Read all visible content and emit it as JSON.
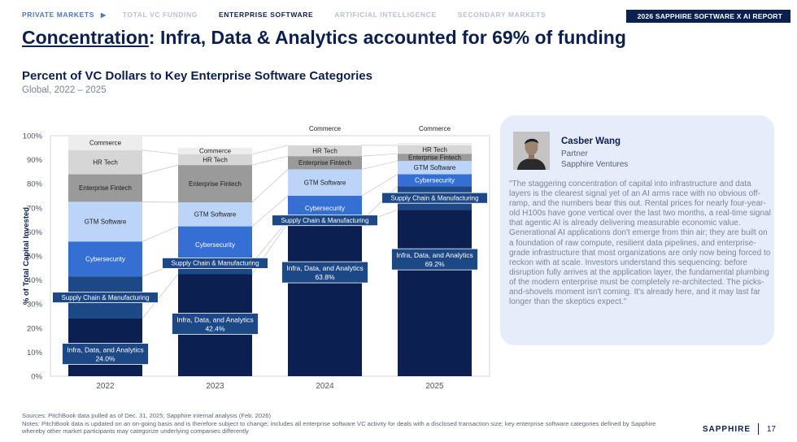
{
  "nav": {
    "items": [
      {
        "label": "PRIVATE MARKETS",
        "state": "parent"
      },
      {
        "label": "TOTAL VC FUNDING",
        "state": "inactive"
      },
      {
        "label": "ENTERPRISE SOFTWARE",
        "state": "active"
      },
      {
        "label": "ARTIFICIAL INTELLIGENCE",
        "state": "inactive"
      },
      {
        "label": "SECONDARY MARKETS",
        "state": "inactive"
      }
    ],
    "arrow": "▶"
  },
  "report_badge": "2026 SAPPHIRE SOFTWARE X AI REPORT",
  "headline": {
    "emph": "Concentration",
    "rest": ": Infra, Data & Analytics accounted for 69% of funding"
  },
  "chart_title": "Percent of VC Dollars to Key Enterprise Software Categories",
  "chart_subtitle": "Global, 2022 – 2025",
  "chart_data": {
    "type": "bar",
    "stacked": true,
    "x": [
      "2022",
      "2023",
      "2024",
      "2025"
    ],
    "ylabel": "% of Total Capital Invested",
    "ylim": [
      0,
      100
    ],
    "yticks": [
      "0%",
      "10%",
      "20%",
      "30%",
      "40%",
      "50%",
      "60%",
      "70%",
      "80%",
      "90%",
      "100%"
    ],
    "series": [
      {
        "name": "Infra, Data, and Analytics",
        "color": "#0b2050",
        "values": [
          24.0,
          42.4,
          63.8,
          69.2
        ],
        "labels": [
          "24.0%",
          "42.4%",
          "63.8%",
          "69.2%"
        ]
      },
      {
        "name": "Supply Chain & Manufacturing",
        "color": "#1d4886",
        "values": [
          17.5,
          4.6,
          1.0,
          9.8
        ]
      },
      {
        "name": "Cybersecurity",
        "color": "#356fd4",
        "values": [
          14.5,
          15.3,
          10.2,
          5.0
        ]
      },
      {
        "name": "GTM Software",
        "color": "#bcd4f7",
        "values": [
          16.5,
          10.0,
          11.0,
          5.5
        ]
      },
      {
        "name": "Enterprise Fintech",
        "color": "#9a9a9a",
        "values": [
          11.5,
          15.5,
          5.5,
          3.0
        ]
      },
      {
        "name": "HR Tech",
        "color": "#d6d6d6",
        "values": [
          10.0,
          4.5,
          4.5,
          3.5
        ]
      },
      {
        "name": "Commerce",
        "color": "#ededed",
        "values": [
          6.0,
          2.7,
          0,
          1.0
        ]
      }
    ]
  },
  "quote": {
    "name": "Casber Wang",
    "role": "Partner",
    "org": "Sapphire Ventures",
    "text": "\"The staggering concentration of capital into infrastructure and data layers is the clearest signal yet of an AI arms race with no obvious off-ramp, and the numbers bear this out. Rental prices for nearly four-year-old H100s have gone vertical over the last two months, a real-time signal that agentic AI is already delivering measurable economic value. Generational AI applications don't emerge from thin air; they are built on a foundation of raw compute, resilient data pipelines, and enterprise-grade infrastructure that most organizations are only now being forced to reckon with at scale. Investors understand this sequencing: before disruption fully arrives at the application layer, the fundamental plumbing of the modern enterprise must be completely re-architected. The picks-and-shovels moment isn't coming. It's already here, and it may last far longer than the skeptics expect.\""
  },
  "footnote": {
    "sources": "Sources: PitchBook data pulled as of Dec. 31, 2025; Sapphire internal analysis (Feb. 2026)",
    "notes": "Notes: PitchBook data is updated on an on-going basis and is therefore subject to change; includes all enterprise software VC activity for deals with a disclosed transaction size; key enterprise software categories defined by Sapphire whereby other market participants may categorize underlying companies differently"
  },
  "brand": "SAPPHIRE",
  "page_number": "17",
  "colors": {
    "navy": "#0b2050",
    "accent": "#4a76c8",
    "card": "#e6ecfa"
  }
}
